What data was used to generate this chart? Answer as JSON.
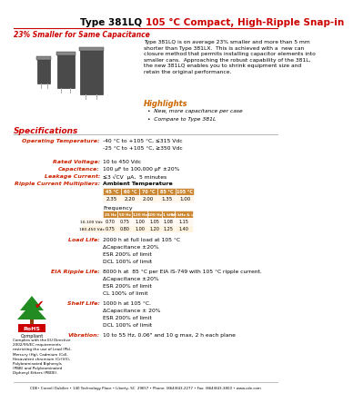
{
  "title_black": "Type 381LQ ",
  "title_red": "105 °C Compact, High-Ripple Snap-in",
  "subtitle": "23% Smaller for Same Capacitance",
  "body_text": "Type 381LQ is on average 23% smaller and more than 5 mm\nshorter than Type 381LX.  This is achieved with a  new can\nclosure method that permits installing capacitor elements into\nsmaller cans.  Approaching the robust capability of the 381L,\nthe new 381LQ enables you to shrink equipment size and\nretain the original performance.",
  "highlights_title": "Highlights",
  "highlights_bullets": [
    "New, more capacitance per case",
    "Compare to Type 381L"
  ],
  "spec_title": "Specifications",
  "specs": [
    [
      "Operating Temperature:",
      "-40 °C to +105 °C, ≤315 Vdc\n-25 °C to +105 °C, ≥350 Vdc"
    ],
    [
      "Rated Voltage:",
      "10 to 450 Vdc"
    ],
    [
      "Capacitance:",
      "100 µF to 100,000 µF ±20%"
    ],
    [
      "Leakage Current:",
      "≤3 √CV  µA,  5 minutes"
    ],
    [
      "Ripple Current Multipliers:",
      "Ambient Temperature"
    ]
  ],
  "amb_temp_headers": [
    "45 °C",
    "60 °C",
    "70 °C",
    "85 °C",
    "105 °C"
  ],
  "amb_temp_values": [
    "2.35",
    "2.20",
    "2.00",
    "1.35",
    "1.00"
  ],
  "freq_label": "Frequency",
  "freq_headers": [
    "25 Hz",
    "50 Hz",
    "120 Hz",
    "400 Hz",
    "1 kHz",
    "10 kHz & up"
  ],
  "freq_rows": [
    [
      "10-100 Vdc",
      "0.70",
      "0.75",
      "1.00",
      "1.05",
      "1.08",
      "1.15"
    ],
    [
      "180-450 Vdc",
      "0.75",
      "0.80",
      "1.00",
      "1.20",
      "1.25",
      "1.40"
    ]
  ],
  "load_life_label": "Load Life:",
  "load_life_text": "2000 h at full load at 105 °C\nΔCapacitance ±20%\nESR 200% of limit\nDCL 100% of limit",
  "eia_label": "EIA Ripple Life:",
  "eia_text": "8000 h at  85 °C per EIA IS-749 with 105 °C ripple current.\nΔCapacitance ±20%\nESR 200% of limit\nCL 100% of limit",
  "shelf_label": "Shelf Life:",
  "shelf_text": "1000 h at 105 °C.\nΔCapacitance ± 20%\nESR 200% of limit\nDCL 100% of limit",
  "vib_label": "Vibration:",
  "vib_text": "10 to 55 Hz, 0.06\" and 10 g max, 2 h each plane",
  "rohs_lines": [
    "Complies with the EU Directive",
    "2002/95/EC requirements",
    "restricting the use of Lead (Pb),",
    "Mercury (Hg), Cadmium (Cd),",
    "Hexavalent chromium (Cr(VI)),",
    "Polybrominated Biphenyls",
    "(PBB) and Polybrominated",
    "Diphenyl Ethers (PBDE)."
  ],
  "footer_text": "CDE• Cornell Dubilier • 140 Technology Place • Liberty, SC  29657 • Phone: (864)843-2277 • Fax: (864)843-3800 • www.cde.com",
  "red_color": "#cc0000",
  "orange_color": "#cc6600",
  "spec_label_color": "#cc2200",
  "table_header_color": "#cc8833",
  "table_row1_color": "#fff8f0",
  "table_row2_color": "#fff3e0",
  "bg_color": "#ffffff"
}
